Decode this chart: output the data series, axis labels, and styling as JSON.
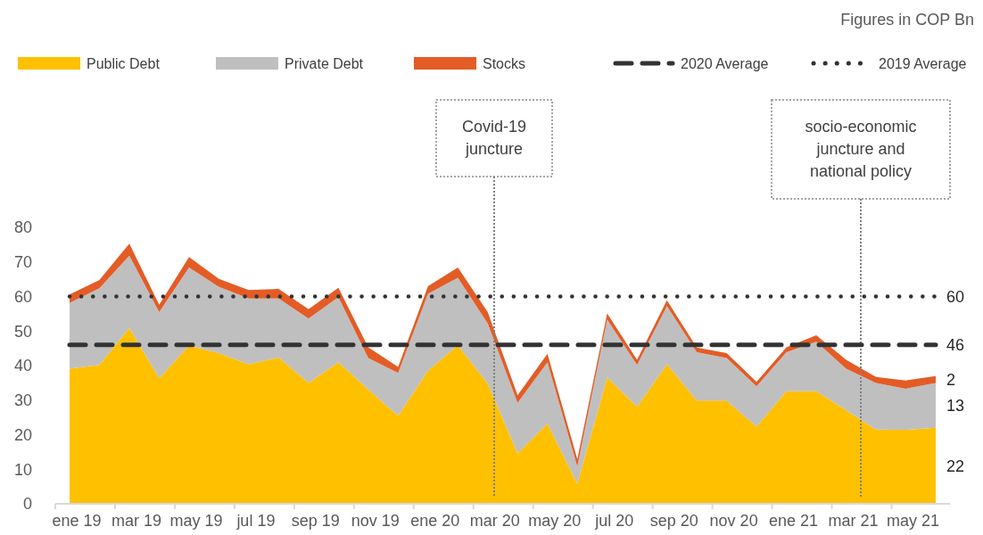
{
  "chart_data": {
    "type": "area",
    "stacked": true,
    "legend": "top",
    "categories": [
      "ene 19",
      null,
      "mar 19",
      null,
      "may 19",
      null,
      "jul 19",
      null,
      "sep 19",
      null,
      "nov 19",
      null,
      "ene 20",
      null,
      "mar 20",
      null,
      "may 20",
      null,
      "jul 20",
      null,
      "sep 20",
      null,
      "nov 20",
      null,
      "ene 21",
      null,
      "mar 21",
      null,
      "may 21",
      null
    ],
    "ylim": [
      0,
      80
    ],
    "yticks": [
      0,
      10,
      20,
      30,
      40,
      50,
      60,
      70,
      80
    ],
    "series": [
      {
        "name": "Public Debt",
        "color": "#ffc000",
        "values": [
          39.1,
          40.2,
          50.9,
          36.3,
          45.8,
          43.6,
          40.4,
          42.4,
          35.0,
          41.0,
          33.1,
          25.5,
          38.5,
          45.9,
          34.8,
          14.6,
          23.2,
          5.8,
          36.6,
          28.1,
          40.4,
          29.9,
          29.9,
          22.3,
          32.6,
          32.6,
          27.1,
          21.5,
          21.4,
          22
        ],
        "value_labels": [
          null,
          null,
          null,
          null,
          null,
          null,
          null,
          null,
          null,
          null,
          null,
          null,
          null,
          null,
          null,
          null,
          null,
          null,
          null,
          null,
          null,
          null,
          null,
          null,
          null,
          null,
          null,
          null,
          null,
          "22"
        ]
      },
      {
        "name": "Private Debt",
        "color": "#bfbfbf",
        "values": [
          19.0,
          22.2,
          20.9,
          19.2,
          22.6,
          19.2,
          19.0,
          17.0,
          18.6,
          18.8,
          9.1,
          12.4,
          22.3,
          19.5,
          17.4,
          14.6,
          17.8,
          5.0,
          16.7,
          12.1,
          16.8,
          14.0,
          12.3,
          11.7,
          11.3,
          14.3,
          12.0,
          13.5,
          11.9,
          13
        ],
        "value_labels": [
          null,
          null,
          null,
          null,
          null,
          null,
          null,
          null,
          null,
          null,
          null,
          null,
          null,
          null,
          null,
          null,
          null,
          null,
          null,
          null,
          null,
          null,
          null,
          null,
          null,
          null,
          null,
          null,
          null,
          "13"
        ]
      },
      {
        "name": "Stocks",
        "color": "#e35c26",
        "values": [
          2.5,
          2.4,
          3.5,
          2.1,
          3.0,
          2.3,
          2.5,
          2.8,
          2.7,
          2.7,
          3.1,
          1.7,
          2.2,
          3.0,
          3.3,
          2.2,
          2.4,
          2.1,
          1.8,
          1.5,
          1.7,
          1.3,
          1.4,
          1.3,
          1.4,
          1.9,
          2.6,
          1.7,
          2.4,
          2
        ],
        "value_labels": [
          null,
          null,
          null,
          null,
          null,
          null,
          null,
          null,
          null,
          null,
          null,
          null,
          null,
          null,
          null,
          null,
          null,
          null,
          null,
          null,
          null,
          null,
          null,
          null,
          null,
          null,
          null,
          null,
          null,
          "2"
        ]
      },
      {
        "name": "2020 Average",
        "type": "line",
        "color": "#333333",
        "line_style": "dashed",
        "values": [
          46,
          46,
          46,
          46,
          46,
          46,
          46,
          46,
          46,
          46,
          46,
          46,
          46,
          46,
          46,
          46,
          46,
          46,
          46,
          46,
          46,
          46,
          46,
          46,
          46,
          46,
          46,
          46,
          46,
          46
        ],
        "value_labels": [
          null,
          null,
          null,
          null,
          null,
          null,
          null,
          null,
          null,
          null,
          null,
          null,
          null,
          null,
          null,
          null,
          null,
          null,
          null,
          null,
          null,
          null,
          null,
          null,
          null,
          null,
          null,
          null,
          null,
          "46"
        ]
      },
      {
        "name": "2019 Average",
        "type": "line",
        "color": "#333333",
        "line_style": "dotted",
        "values": [
          60,
          60,
          60,
          60,
          60,
          60,
          60,
          60,
          60,
          60,
          60,
          60,
          60,
          60,
          60,
          60,
          60,
          60,
          60,
          60,
          60,
          60,
          60,
          60,
          60,
          60,
          60,
          60,
          60,
          60
        ],
        "value_labels": [
          null,
          null,
          null,
          null,
          null,
          null,
          null,
          null,
          null,
          null,
          null,
          null,
          null,
          null,
          null,
          null,
          null,
          null,
          null,
          null,
          null,
          null,
          null,
          null,
          null,
          null,
          null,
          null,
          null,
          "60"
        ]
      }
    ],
    "annotations": [
      "Figures in COP Bn",
      "Covid-19 juncture",
      "socio-economic juncture and national policy"
    ]
  }
}
